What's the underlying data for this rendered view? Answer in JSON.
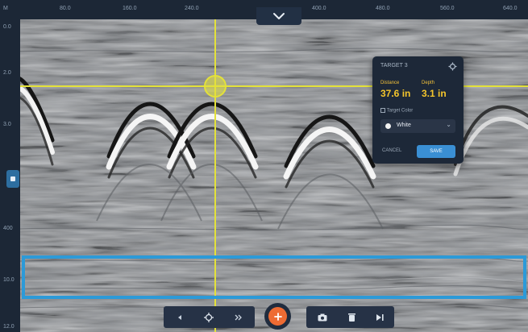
{
  "top_ruler": {
    "ticks": [
      "M",
      "80.0",
      "160.0",
      "240.0",
      "",
      "400.0",
      "480.0",
      "560.0",
      "640.0"
    ]
  },
  "left_ruler": {
    "ticks": [
      "0.0",
      "2.0",
      "3.0",
      "",
      "400",
      "10.0",
      "12.0"
    ]
  },
  "target_card": {
    "title": "TARGET 3",
    "distance_label": "Distance",
    "distance_value": "37.6 in",
    "depth_label": "Depth",
    "depth_value": "3.1 in",
    "checkbox_label": "Target Color",
    "color_value": "White",
    "cancel_label": "CANCEL",
    "save_label": "SAVE"
  },
  "colors": {
    "crosshair": "#e3e13a",
    "selection": "#2c9ad8",
    "accent": "#ee6b33",
    "value": "#f5c62c"
  },
  "icons": {
    "collapse": "chevron-down-icon",
    "prev": "triangle-left-icon",
    "center": "crosshair-icon",
    "fast_forward": "double-chevron-icon",
    "add": "plus-icon",
    "camera": "camera-icon",
    "delete": "trash-icon",
    "play": "play-icon"
  }
}
